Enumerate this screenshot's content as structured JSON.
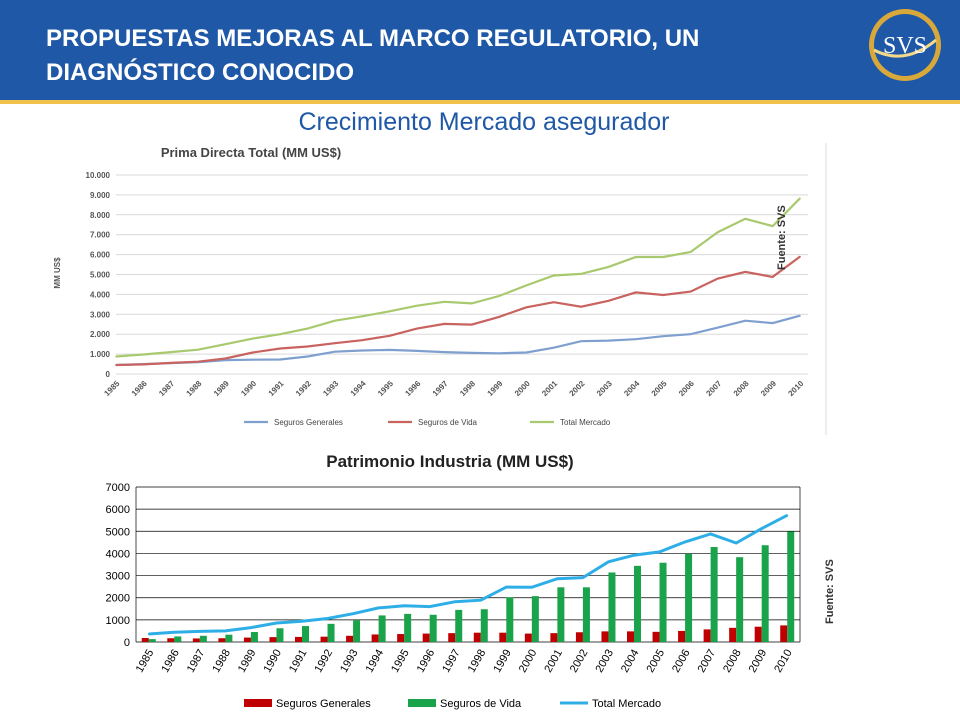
{
  "header": {
    "title_line1": "PROPUESTAS MEJORAS AL MARCO REGULATORIO, UN",
    "title_line2": "DIAGNÓSTICO CONOCIDO",
    "logo_text": "SVS",
    "background": "#1f58a6",
    "accent": "#f2c14b"
  },
  "subtitle": "Crecimiento Mercado asegurador",
  "source_label": "Fuente: SVS",
  "chart_data": [
    {
      "type": "line",
      "title": "Prima Directa Total (MM US$)",
      "ylabel": "MM US$",
      "xlabel": "",
      "ylim": [
        0,
        10000
      ],
      "yticks": [
        "0",
        "1.000",
        "2.000",
        "3.000",
        "4.000",
        "5.000",
        "6.000",
        "7.000",
        "8.000",
        "9.000",
        "10.000"
      ],
      "x": [
        "1985",
        "1986",
        "1987",
        "1988",
        "1989",
        "1990",
        "1991",
        "1992",
        "1993",
        "1994",
        "1995",
        "1996",
        "1997",
        "1998",
        "1999",
        "2000",
        "2001",
        "2002",
        "2003",
        "2004",
        "2005",
        "2006",
        "2007",
        "2008",
        "2009",
        "2010"
      ],
      "grid": true,
      "legend": "bottom",
      "series": [
        {
          "name": "Seguros Generales",
          "color": "#7f9fcf",
          "values": [
            450,
            500,
            550,
            600,
            700,
            720,
            730,
            880,
            1120,
            1180,
            1210,
            1160,
            1100,
            1060,
            1040,
            1080,
            1320,
            1650,
            1680,
            1750,
            1900,
            2000,
            2330,
            2680,
            2560,
            2930
          ]
        },
        {
          "name": "Seguros de Vida",
          "color": "#c9635f",
          "values": [
            450,
            480,
            560,
            620,
            780,
            1080,
            1280,
            1380,
            1550,
            1700,
            1920,
            2280,
            2520,
            2480,
            2870,
            3350,
            3610,
            3380,
            3680,
            4100,
            3970,
            4140,
            4800,
            5130,
            4880,
            5900
          ]
        },
        {
          "name": "Total Mercado",
          "color": "#a8c96e",
          "values": [
            880,
            980,
            1100,
            1220,
            1500,
            1780,
            2000,
            2280,
            2680,
            2900,
            3150,
            3430,
            3630,
            3550,
            3920,
            4450,
            4950,
            5030,
            5380,
            5880,
            5880,
            6130,
            7130,
            7800,
            7430,
            8830
          ]
        }
      ]
    },
    {
      "type": "bar",
      "title": "Patrimonio Industria (MM US$)",
      "xlabel": "",
      "ylabel": "",
      "ylim": [
        0,
        7000
      ],
      "yticks": [
        "0",
        "1000",
        "2000",
        "3000",
        "4000",
        "5000",
        "6000",
        "7000"
      ],
      "categories": [
        "1985",
        "1986",
        "1987",
        "1988",
        "1989",
        "1990",
        "1991",
        "1992",
        "1993",
        "1994",
        "1995",
        "1996",
        "1997",
        "1998",
        "1999",
        "2000",
        "2001",
        "2002",
        "2003",
        "2004",
        "2005",
        "2006",
        "2007",
        "2008",
        "2009",
        "2010"
      ],
      "grid": true,
      "legend": "bottom",
      "series": [
        {
          "name": "Seguros Generales",
          "type": "bar",
          "color": "#c00000",
          "values": [
            180,
            170,
            160,
            170,
            200,
            220,
            230,
            240,
            280,
            340,
            360,
            380,
            400,
            420,
            420,
            380,
            400,
            440,
            480,
            480,
            460,
            500,
            570,
            640,
            690,
            750
          ]
        },
        {
          "name": "Seguros de Vida",
          "type": "bar",
          "color": "#19a34a",
          "values": [
            130,
            250,
            280,
            330,
            450,
            620,
            720,
            820,
            980,
            1200,
            1270,
            1230,
            1450,
            1480,
            2020,
            2070,
            2470,
            2470,
            3140,
            3440,
            3580,
            3980,
            4290,
            3830,
            4370,
            4990
          ]
        },
        {
          "name": "Total Mercado",
          "type": "line",
          "color": "#2eaee6",
          "values": [
            360,
            440,
            480,
            500,
            650,
            860,
            940,
            1060,
            1280,
            1540,
            1640,
            1600,
            1820,
            1890,
            2480,
            2470,
            2860,
            2910,
            3620,
            3920,
            4070,
            4520,
            4880,
            4470,
            5120,
            5720
          ]
        }
      ]
    }
  ]
}
